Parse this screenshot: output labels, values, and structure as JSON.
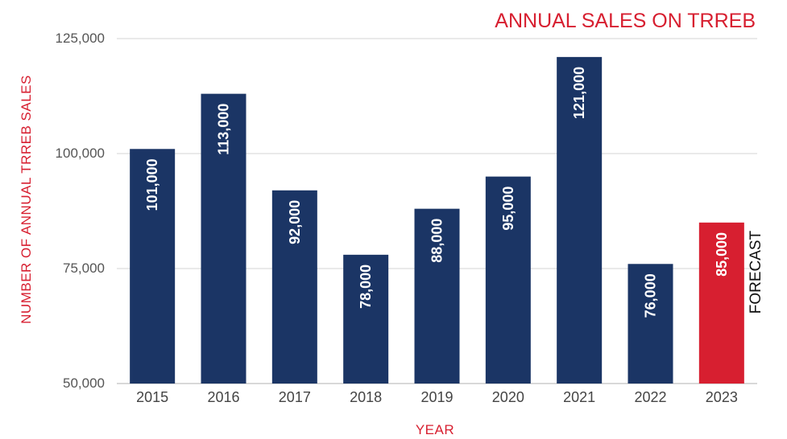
{
  "chart_data": {
    "type": "bar",
    "title": "ANNUAL SALES ON TRREB",
    "xlabel": "YEAR",
    "ylabel": "NUMBER OF ANNUAL TRREB SALES",
    "categories": [
      "2015",
      "2016",
      "2017",
      "2018",
      "2019",
      "2020",
      "2021",
      "2022",
      "2023"
    ],
    "values": [
      101000,
      113000,
      92000,
      78000,
      88000,
      95000,
      121000,
      76000,
      85000
    ],
    "data_labels": [
      "101,000",
      "113,000",
      "92,000",
      "78,000",
      "88,000",
      "95,000",
      "121,000",
      "76,000",
      "85,000"
    ],
    "ylim": [
      50000,
      125000
    ],
    "yticks": [
      50000,
      75000,
      100000,
      125000
    ],
    "ytick_labels": [
      "50,000",
      "75,000",
      "100,000",
      "125,000"
    ],
    "grid": true,
    "annotation": {
      "category": "2023",
      "text": "FORECAST"
    },
    "colors": {
      "bar": "#1b3565",
      "forecast_bar": "#d71f30",
      "accent": "#d71f30",
      "grid": "#d5d5d5"
    }
  }
}
